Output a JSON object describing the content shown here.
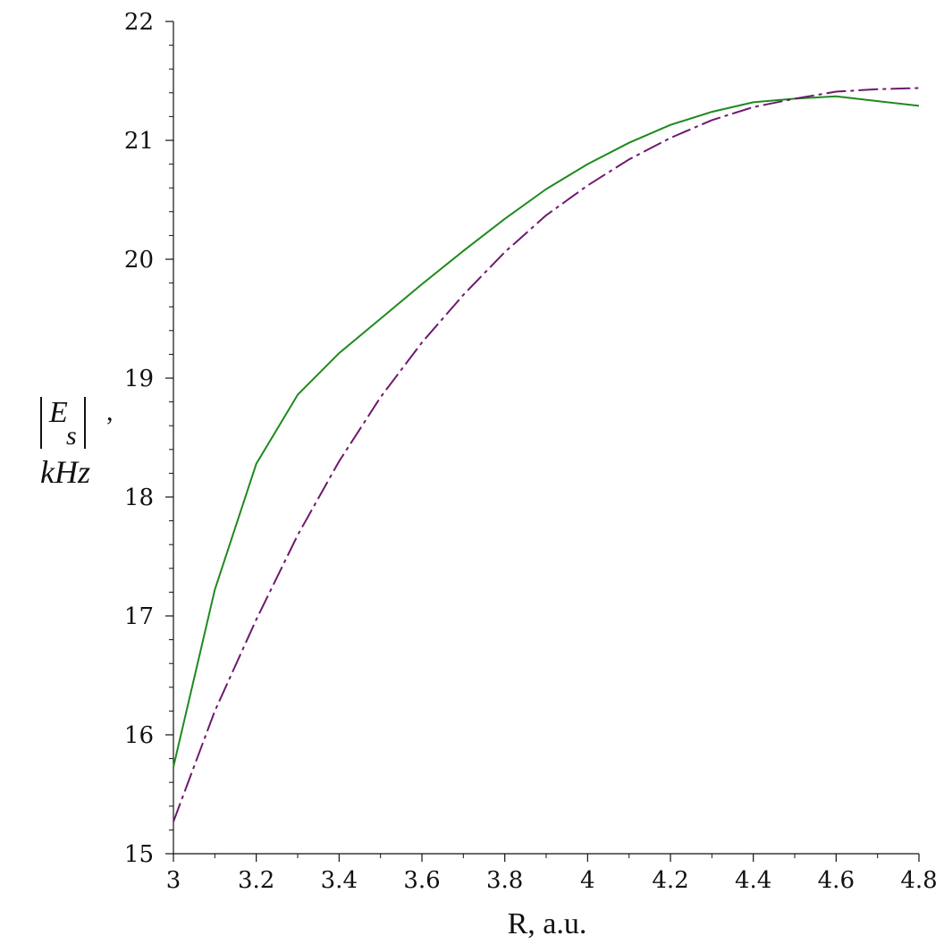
{
  "chart_data": {
    "type": "line",
    "xlabel": "R, a.u.",
    "ylabel": {
      "symbol": "E",
      "subscript": "s",
      "separator": ",",
      "unit": "kHz"
    },
    "xlim": [
      3,
      4.8
    ],
    "ylim": [
      15,
      22
    ],
    "xticks": [
      "3",
      "3.2",
      "3.4",
      "3.6",
      "3.8",
      "4",
      "4.2",
      "4.4",
      "4.6",
      "4.8"
    ],
    "yticks": [
      "15",
      "16",
      "17",
      "18",
      "19",
      "20",
      "21",
      "22"
    ],
    "grid": false,
    "legend": "none",
    "series": [
      {
        "style": "solid",
        "color": "#1e8a1e",
        "x": [
          3.0,
          3.1,
          3.2,
          3.3,
          3.4,
          3.5,
          3.6,
          3.7,
          3.8,
          3.9,
          4.0,
          4.1,
          4.2,
          4.3,
          4.4,
          4.5,
          4.6,
          4.7,
          4.8
        ],
        "y": [
          15.73,
          17.22,
          18.28,
          18.86,
          19.21,
          19.5,
          19.79,
          20.07,
          20.34,
          20.59,
          20.8,
          20.98,
          21.13,
          21.24,
          21.32,
          21.35,
          21.37,
          21.33,
          21.29
        ]
      },
      {
        "style": "dashed",
        "color": "#6e1a6e",
        "x": [
          3.0,
          3.1,
          3.2,
          3.3,
          3.4,
          3.5,
          3.6,
          3.7,
          3.8,
          3.9,
          4.0,
          4.1,
          4.2,
          4.3,
          4.4,
          4.5,
          4.6,
          4.7,
          4.8
        ],
        "y": [
          15.27,
          16.2,
          16.97,
          17.68,
          18.3,
          18.84,
          19.3,
          19.7,
          20.06,
          20.37,
          20.62,
          20.84,
          21.02,
          21.17,
          21.28,
          21.35,
          21.41,
          21.43,
          21.44
        ]
      }
    ]
  }
}
